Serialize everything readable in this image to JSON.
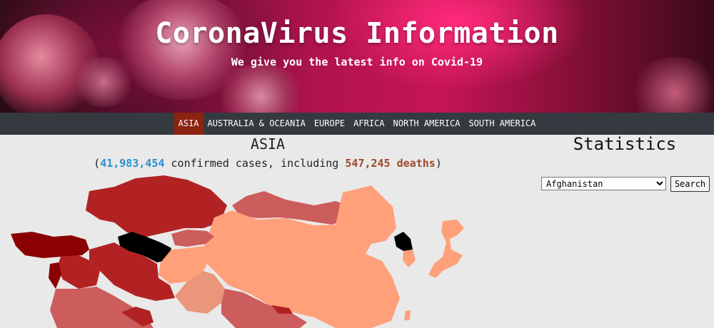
{
  "header": {
    "title": "CoronaVirus Information",
    "subtitle": "We give you the latest info on Covid-19"
  },
  "nav": {
    "items": [
      "ASIA",
      "AUSTRALIA & OCEANIA",
      "EUROPE",
      "AFRICA",
      "NORTH AMERICA",
      "SOUTH AMERICA"
    ],
    "active": "ASIA"
  },
  "region": {
    "name": "ASIA",
    "confirmed": "41,983,454",
    "text_mid": " confirmed cases, including ",
    "deaths": "547,245 deaths",
    "open_paren": "(",
    "close_paren": ")"
  },
  "statistics": {
    "title": "Statistics",
    "selected_country": "Afghanistan",
    "search_label": "Search"
  },
  "colors": {
    "nav_bg": "#353a40",
    "nav_active": "#8c2210",
    "confirmed": "#2a8fd0",
    "deaths": "#9a4b2a",
    "map_darkest": "#8b0000",
    "map_dark": "#b22222",
    "map_medium": "#cd5c5c",
    "map_light": "#e9967a",
    "map_lightest": "#ffa07a",
    "map_nodata": "#000000"
  }
}
